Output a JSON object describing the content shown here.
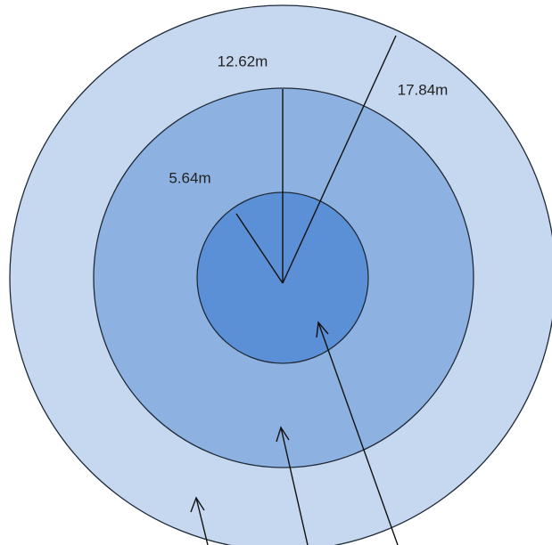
{
  "radius_labels": [
    "12.62m",
    "17.84m",
    "5.64m"
  ]
}
